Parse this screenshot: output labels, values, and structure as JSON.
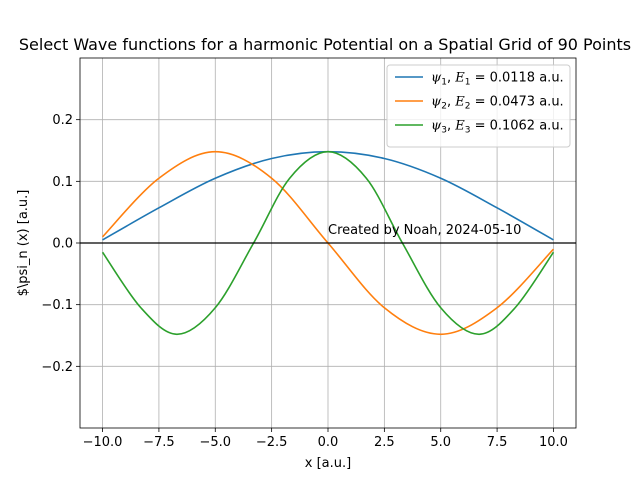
{
  "chart_data": {
    "type": "line",
    "title": "Select Wave functions for a harmonic Potential on a Spatial Grid of 90 Points",
    "xlabel": "x [a.u.]",
    "ylabel": "$\\psi_n (x) [a.u.]",
    "xlim": [
      -11,
      11
    ],
    "ylim": [
      -0.3,
      0.3
    ],
    "xticks": [
      -10.0,
      -7.5,
      -5.0,
      -2.5,
      0.0,
      2.5,
      5.0,
      7.5,
      10.0
    ],
    "xtick_labels": [
      "−10.0",
      "−7.5",
      "−5.0",
      "−2.5",
      "0.0",
      "2.5",
      "5.0",
      "7.5",
      "10.0"
    ],
    "yticks": [
      -0.2,
      -0.1,
      0.0,
      0.1,
      0.2
    ],
    "ytick_labels": [
      "−0.2",
      "−0.1",
      "0.0",
      "0.1",
      "0.2"
    ],
    "grid": true,
    "legend_position": "top-right",
    "reference_line": {
      "y": 0.0,
      "color": "#000000"
    },
    "annotation": {
      "text": "Created by Noah, 2024-05-10",
      "x": 0.0,
      "y": 0.015
    },
    "series": [
      {
        "name": "ψ_1, E_1 = 0.0118 a.u.",
        "legend_parts": {
          "psi": "ψ",
          "sub": "1",
          "e": "E",
          "value": " = 0.0118 a.u."
        },
        "color": "#1f77b4",
        "x": [
          -10.0,
          -7.5,
          -5.0,
          -2.5,
          0.0,
          2.5,
          5.0,
          7.5,
          10.0
        ],
        "y": [
          0.005,
          0.057,
          0.105,
          0.137,
          0.148,
          0.137,
          0.105,
          0.057,
          0.005
        ]
      },
      {
        "name": "ψ_2, E_2 = 0.0473 a.u.",
        "legend_parts": {
          "psi": "ψ",
          "sub": "2",
          "e": "E",
          "value": " = 0.0473 a.u."
        },
        "color": "#ff7f0e",
        "x": [
          -10.0,
          -7.5,
          -5.0,
          -2.5,
          0.0,
          2.5,
          5.0,
          7.5,
          10.0
        ],
        "y": [
          0.01,
          0.105,
          0.148,
          0.105,
          0.0,
          -0.105,
          -0.148,
          -0.105,
          -0.01
        ]
      },
      {
        "name": "ψ_3, E_3 = 0.1062 a.u.",
        "legend_parts": {
          "psi": "ψ",
          "sub": "3",
          "e": "E",
          "value": " = 0.1062 a.u."
        },
        "color": "#2ca02c",
        "x": [
          -10.0,
          -8.3,
          -6.7,
          -5.0,
          -3.3,
          -1.7,
          0.0,
          1.7,
          3.3,
          5.0,
          6.7,
          8.3,
          10.0
        ],
        "y": [
          -0.015,
          -0.105,
          -0.148,
          -0.105,
          0.0,
          0.105,
          0.148,
          0.105,
          0.0,
          -0.105,
          -0.148,
          -0.105,
          -0.015
        ]
      }
    ]
  }
}
